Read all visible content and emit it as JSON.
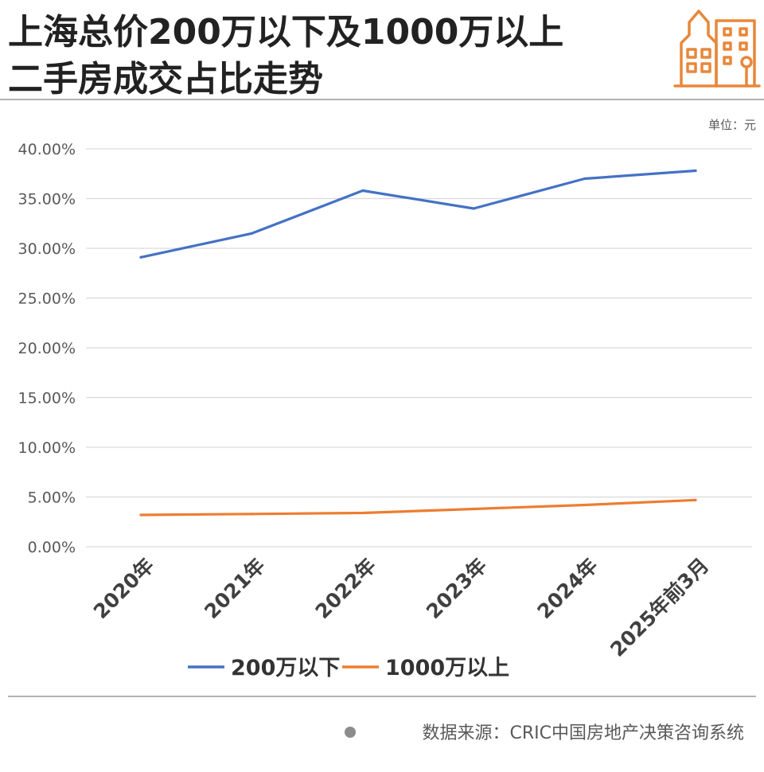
{
  "header": {
    "title_line1": "上海总价200万以下及1000万以上",
    "title_line2": "二手房成交占比走势",
    "logo_icon": "city-buildings-icon"
  },
  "colors": {
    "title": "#222222",
    "accent": "#e8873a",
    "series_blue": "#4472c4",
    "series_orange": "#ed7d31",
    "grid": "#d9d9d9",
    "axis_text": "#595959"
  },
  "chart_data": {
    "type": "line",
    "title": "上海总价200万以下及1000万以上二手房成交占比走势",
    "unit_note": "单位：元",
    "categories": [
      "2020年",
      "2021年",
      "2022年",
      "2023年",
      "2024年",
      "2025年前3月"
    ],
    "series": [
      {
        "name": "200万以下",
        "color": "#4472c4",
        "values": [
          29.1,
          31.5,
          35.8,
          34.0,
          37.0,
          37.8
        ]
      },
      {
        "name": "1000万以上",
        "color": "#ed7d31",
        "values": [
          3.2,
          3.3,
          3.4,
          3.8,
          4.2,
          4.7
        ]
      }
    ],
    "ylim": [
      0,
      40
    ],
    "yticks": [
      0,
      5,
      10,
      15,
      20,
      25,
      30,
      35,
      40
    ],
    "ytick_labels": [
      "0.00%",
      "5.00%",
      "10.00%",
      "15.00%",
      "20.00%",
      "25.00%",
      "30.00%",
      "35.00%",
      "40.00%"
    ],
    "grid": true,
    "legend_position": "bottom-center",
    "xlabel": "",
    "ylabel": ""
  },
  "footer": {
    "source_text": "数据来源：CRIC中国房地产决策咨询系统"
  }
}
